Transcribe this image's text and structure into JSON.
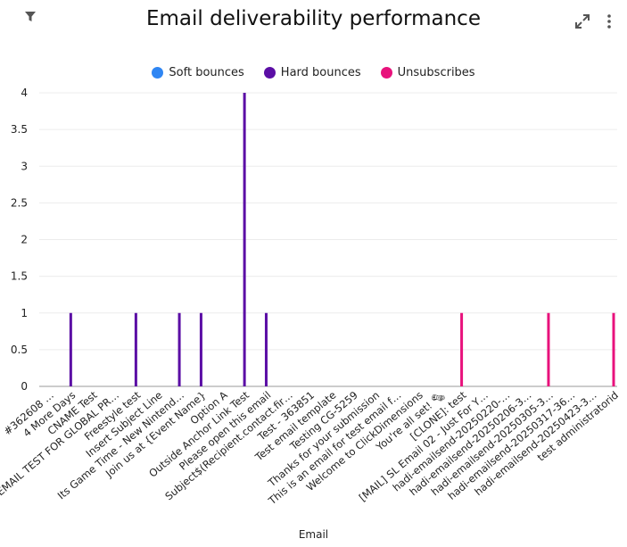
{
  "header": {
    "title": "Email deliverability performance",
    "filter_icon": "filter-icon",
    "expand_icon": "expand-icon",
    "menu_icon": "kebab-menu-icon"
  },
  "chart_data": {
    "type": "bar",
    "title": "Email deliverability performance",
    "xlabel": "Email",
    "ylabel": "",
    "ylim": [
      0,
      4
    ],
    "yticks": [
      "0",
      "0.5",
      "1",
      "1.5",
      "2",
      "2.5",
      "3",
      "3.5",
      "4"
    ],
    "legend_position": "top-center",
    "grid": true,
    "categories": [
      "#362608 …",
      "4 More Days",
      "CNAME Test",
      "EMAIL TEST FOR GLOBAL PR…",
      "Freestyle test",
      "Insert Subject Line",
      "Its Game Time - New Nintend…",
      "Join us at {Event Name}",
      "Option A",
      "Outside Anchor Link Test",
      "Please open this email",
      "Subject$(Recipient.contact.fir…",
      "Test - 363851",
      "Test email template",
      "Testing CG-5259",
      "Thanks for your submission",
      "This is an email for test email f…",
      "Welcome to ClickDimensions",
      "You're all set! 🗞",
      "[CLONE]: test",
      "[MAIL] SL Email 02 - Just For Y…",
      "hadi-emailsend-20250220-…",
      "hadi-emailsend-20250206-3…",
      "hadi-emailsend-20250305-3…",
      "hadi-emailsend-20250317-36…",
      "hadi-emailsend-20250423-3…",
      "test administratorid"
    ],
    "series": [
      {
        "name": "Soft bounces",
        "color": "#2f86f3",
        "values": [
          0,
          0,
          0,
          0,
          0,
          0,
          0,
          0,
          0,
          0,
          0,
          0,
          0,
          0,
          0,
          0,
          0,
          0,
          0,
          0,
          0,
          0,
          0,
          0,
          0,
          0,
          0
        ]
      },
      {
        "name": "Hard bounces",
        "color": "#5b0ea5",
        "values": [
          0,
          1,
          0,
          0,
          1,
          0,
          1,
          1,
          0,
          4,
          1,
          0,
          0,
          0,
          0,
          0,
          0,
          0,
          0,
          0,
          0,
          0,
          0,
          0,
          0,
          0,
          0
        ]
      },
      {
        "name": "Unsubscribes",
        "color": "#e8127c",
        "values": [
          0,
          0,
          0,
          0,
          0,
          0,
          0,
          0,
          0,
          0,
          0,
          0,
          0,
          0,
          0,
          0,
          0,
          0,
          0,
          1,
          0,
          0,
          0,
          1,
          0,
          0,
          1
        ]
      }
    ]
  }
}
